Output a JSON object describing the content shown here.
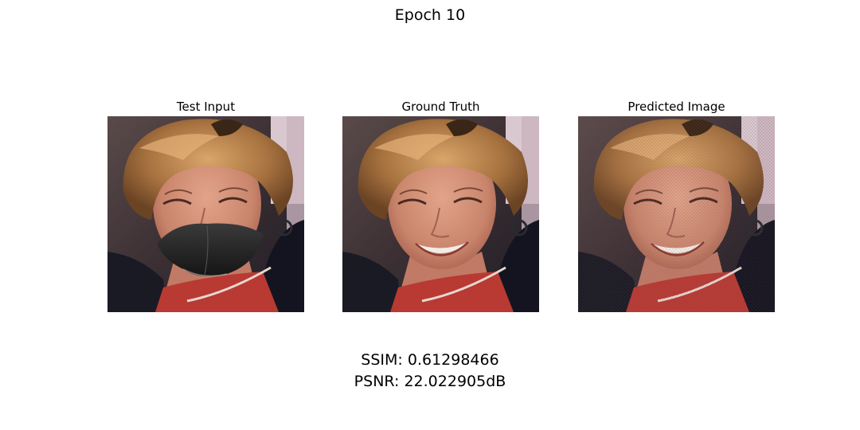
{
  "figure": {
    "title": "Epoch 10"
  },
  "panels": [
    {
      "title": "Test Input",
      "image": "masked-face-photo"
    },
    {
      "title": "Ground Truth",
      "image": "face-photo"
    },
    {
      "title": "Predicted Image",
      "image": "reconstructed-face-photo"
    }
  ],
  "metrics": {
    "ssim": "SSIM: 0.61298466",
    "psnr": "PSNR: 22.022905dB"
  }
}
